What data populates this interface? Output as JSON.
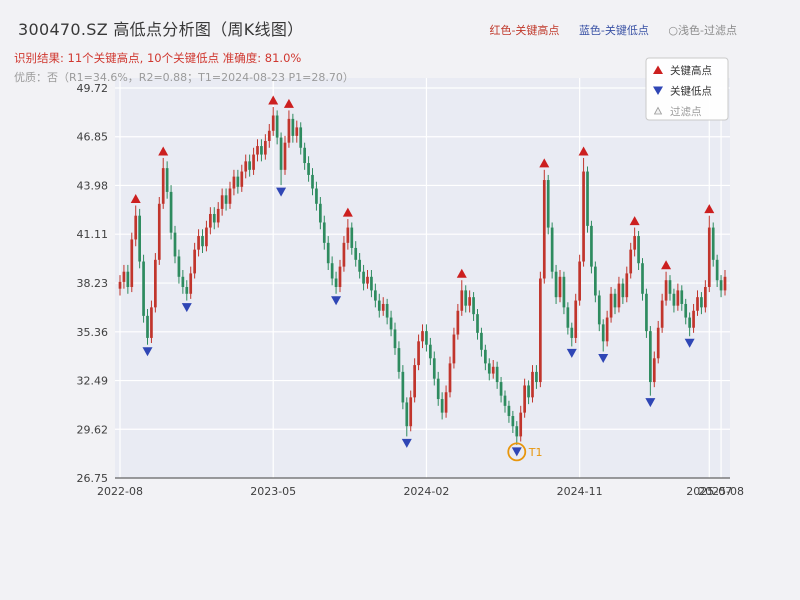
{
  "header": {
    "title": "300470.SZ 高低点分析图（周K线图）",
    "legend_inline": [
      {
        "label": "红色-关键高点",
        "color": "#c0392b"
      },
      {
        "label": "蓝色-关键低点",
        "color": "#3a52a5"
      },
      {
        "label": "○浅色-过滤点",
        "color": "#8a8a8a"
      }
    ],
    "result_line": "识别结果: 11个关键高点, 10个关键低点  准确度: 81.0%",
    "quality_line": "优质：否（R1=34.6%，R2=0.88；T1=2024-08-23 P1=28.70）"
  },
  "chart_data": {
    "type": "candlestick",
    "symbol": "300470.SZ",
    "period": "weekly",
    "title": "300470.SZ 高低点分析图（周K线图）",
    "ylim": [
      26.75,
      49.72
    ],
    "y_ticks": [
      49.72,
      46.85,
      43.98,
      41.11,
      38.23,
      35.36,
      32.49,
      29.62,
      26.75
    ],
    "x_ticks": [
      {
        "label": "2022-08",
        "week": 0
      },
      {
        "label": "2023-05",
        "week": 39
      },
      {
        "label": "2024-02",
        "week": 78
      },
      {
        "label": "2024-11",
        "week": 117
      },
      {
        "label": "2025-07",
        "week": 150
      },
      {
        "label": "2025-08",
        "week": 153
      }
    ],
    "grid": true,
    "legend_position": "upper-right-inside",
    "legend": [
      {
        "label": "关键高点",
        "marker": "up-triangle",
        "color": "#cc1f1f"
      },
      {
        "label": "关键低点",
        "marker": "down-triangle",
        "color": "#2f46b5"
      },
      {
        "label": "过滤点",
        "marker": "hollow-triangle",
        "color": "#999999"
      }
    ],
    "colors": {
      "up": "#c1352c",
      "down": "#2e8b5f",
      "key_high": "#cc1f1f",
      "key_low": "#2f46b5",
      "filtered": "#aaaaaa",
      "t1": "#e8960c",
      "grid": "#ffffff",
      "plot_bg": "#e9ebf3",
      "figure_bg": "#f2f2f5",
      "axis_text": "#3f3f3f"
    },
    "candles": [
      [
        37.9,
        38.3,
        37.5,
        38.7
      ],
      [
        38.3,
        38.9,
        37.9,
        39.3
      ],
      [
        38.9,
        38.0,
        37.6,
        39.3
      ],
      [
        38.0,
        40.8,
        37.7,
        41.2
      ],
      [
        40.8,
        42.2,
        40.4,
        42.8
      ],
      [
        42.2,
        39.5,
        39.1,
        42.6
      ],
      [
        39.5,
        36.3,
        35.9,
        39.9
      ],
      [
        36.3,
        35.0,
        34.6,
        36.7
      ],
      [
        35.0,
        36.8,
        34.7,
        37.2
      ],
      [
        36.8,
        39.6,
        36.5,
        40.0
      ],
      [
        39.6,
        42.9,
        39.3,
        43.3
      ],
      [
        42.9,
        45.0,
        42.6,
        45.6
      ],
      [
        45.0,
        43.6,
        43.2,
        45.4
      ],
      [
        43.6,
        41.2,
        40.8,
        44.0
      ],
      [
        41.2,
        39.8,
        39.4,
        41.6
      ],
      [
        39.8,
        38.6,
        38.2,
        40.2
      ],
      [
        38.6,
        38.0,
        37.6,
        39.0
      ],
      [
        38.0,
        37.6,
        37.2,
        38.4
      ],
      [
        37.6,
        38.8,
        37.3,
        39.2
      ],
      [
        38.8,
        40.2,
        38.5,
        40.6
      ],
      [
        40.2,
        41.0,
        39.8,
        41.4
      ],
      [
        41.0,
        40.4,
        40.0,
        41.4
      ],
      [
        40.4,
        41.5,
        40.1,
        41.9
      ],
      [
        41.5,
        42.3,
        41.1,
        42.7
      ],
      [
        42.3,
        41.8,
        41.4,
        42.7
      ],
      [
        41.8,
        42.6,
        41.5,
        43.0
      ],
      [
        42.6,
        43.4,
        42.2,
        43.8
      ],
      [
        43.4,
        42.9,
        42.5,
        43.8
      ],
      [
        42.9,
        43.8,
        42.6,
        44.2
      ],
      [
        43.8,
        44.5,
        43.4,
        44.9
      ],
      [
        44.5,
        43.9,
        43.5,
        44.9
      ],
      [
        43.9,
        44.8,
        43.6,
        45.2
      ],
      [
        44.8,
        45.4,
        44.4,
        45.8
      ],
      [
        45.4,
        44.9,
        44.5,
        45.8
      ],
      [
        44.9,
        45.8,
        44.6,
        46.2
      ],
      [
        45.8,
        46.3,
        45.4,
        46.7
      ],
      [
        46.3,
        45.8,
        45.4,
        46.7
      ],
      [
        45.8,
        46.6,
        45.5,
        47.0
      ],
      [
        46.6,
        47.2,
        46.2,
        47.6
      ],
      [
        47.2,
        48.1,
        46.9,
        48.6
      ],
      [
        48.1,
        46.8,
        46.4,
        48.4
      ],
      [
        46.8,
        44.9,
        44.0,
        47.1
      ],
      [
        44.9,
        46.5,
        44.6,
        46.9
      ],
      [
        46.5,
        47.9,
        46.2,
        48.4
      ],
      [
        47.9,
        46.9,
        46.5,
        48.2
      ],
      [
        46.9,
        47.4,
        46.5,
        47.8
      ],
      [
        47.4,
        46.2,
        45.8,
        47.7
      ],
      [
        46.2,
        45.3,
        44.9,
        46.5
      ],
      [
        45.3,
        44.6,
        44.2,
        45.7
      ],
      [
        44.6,
        43.8,
        43.4,
        45.0
      ],
      [
        43.8,
        42.9,
        42.5,
        44.2
      ],
      [
        42.9,
        41.8,
        41.4,
        43.3
      ],
      [
        41.8,
        40.6,
        40.2,
        42.2
      ],
      [
        40.6,
        39.4,
        39.0,
        41.0
      ],
      [
        39.4,
        38.5,
        38.1,
        39.8
      ],
      [
        38.5,
        38.0,
        37.6,
        38.9
      ],
      [
        38.0,
        39.2,
        37.7,
        39.6
      ],
      [
        39.2,
        40.6,
        38.9,
        41.0
      ],
      [
        40.6,
        41.5,
        40.2,
        42.0
      ],
      [
        41.5,
        40.3,
        39.9,
        41.8
      ],
      [
        40.3,
        39.6,
        39.2,
        40.7
      ],
      [
        39.6,
        38.9,
        38.5,
        40.0
      ],
      [
        38.9,
        38.2,
        37.8,
        39.3
      ],
      [
        38.2,
        38.6,
        37.9,
        39.0
      ],
      [
        38.6,
        37.8,
        37.4,
        39.0
      ],
      [
        37.8,
        37.2,
        36.8,
        38.2
      ],
      [
        37.2,
        36.6,
        36.2,
        37.6
      ],
      [
        36.6,
        37.0,
        36.3,
        37.4
      ],
      [
        37.0,
        36.2,
        35.8,
        37.3
      ],
      [
        36.2,
        35.5,
        35.1,
        36.6
      ],
      [
        35.5,
        34.4,
        34.0,
        35.9
      ],
      [
        34.4,
        33.0,
        32.6,
        34.8
      ],
      [
        33.0,
        31.2,
        30.8,
        33.4
      ],
      [
        31.2,
        29.8,
        29.2,
        31.5
      ],
      [
        29.8,
        31.5,
        29.5,
        31.9
      ],
      [
        31.5,
        33.4,
        31.2,
        33.8
      ],
      [
        33.4,
        34.8,
        33.1,
        35.2
      ],
      [
        34.8,
        35.4,
        34.4,
        35.8
      ],
      [
        35.4,
        34.6,
        34.2,
        35.8
      ],
      [
        34.6,
        33.8,
        33.4,
        35.0
      ],
      [
        33.8,
        32.6,
        32.2,
        34.2
      ],
      [
        32.6,
        31.4,
        31.0,
        33.0
      ],
      [
        31.4,
        30.6,
        30.2,
        31.8
      ],
      [
        30.6,
        31.8,
        30.3,
        32.2
      ],
      [
        31.8,
        33.5,
        31.5,
        33.9
      ],
      [
        33.5,
        35.2,
        33.2,
        35.6
      ],
      [
        35.2,
        36.6,
        34.9,
        37.0
      ],
      [
        36.6,
        37.8,
        36.3,
        38.4
      ],
      [
        37.8,
        36.9,
        36.5,
        38.1
      ],
      [
        36.9,
        37.4,
        36.5,
        37.8
      ],
      [
        37.4,
        36.4,
        36.0,
        37.7
      ],
      [
        36.4,
        35.3,
        34.9,
        36.7
      ],
      [
        35.3,
        34.3,
        33.9,
        35.6
      ],
      [
        34.3,
        33.5,
        33.1,
        34.6
      ],
      [
        33.5,
        32.9,
        32.5,
        33.8
      ],
      [
        32.9,
        33.3,
        32.6,
        33.7
      ],
      [
        33.3,
        32.4,
        32.0,
        33.6
      ],
      [
        32.4,
        31.6,
        31.2,
        32.7
      ],
      [
        31.6,
        31.0,
        30.6,
        31.9
      ],
      [
        31.0,
        30.4,
        30.0,
        31.3
      ],
      [
        30.4,
        29.8,
        29.4,
        30.7
      ],
      [
        29.8,
        29.2,
        28.7,
        30.1
      ],
      [
        29.2,
        30.6,
        28.9,
        31.0
      ],
      [
        30.6,
        32.2,
        30.3,
        32.6
      ],
      [
        32.2,
        31.5,
        31.1,
        32.5
      ],
      [
        31.5,
        33.0,
        31.2,
        33.4
      ],
      [
        33.0,
        32.4,
        32.0,
        33.4
      ],
      [
        32.4,
        38.5,
        32.1,
        38.9
      ],
      [
        38.5,
        44.3,
        38.2,
        44.9
      ],
      [
        44.3,
        41.5,
        41.1,
        44.6
      ],
      [
        41.5,
        38.9,
        38.5,
        41.8
      ],
      [
        38.9,
        37.4,
        37.0,
        39.3
      ],
      [
        37.4,
        38.6,
        37.1,
        39.0
      ],
      [
        38.6,
        36.8,
        36.4,
        38.9
      ],
      [
        36.8,
        35.6,
        35.2,
        37.1
      ],
      [
        35.6,
        35.0,
        34.5,
        35.9
      ],
      [
        35.0,
        37.2,
        34.7,
        37.6
      ],
      [
        37.2,
        39.5,
        36.9,
        39.9
      ],
      [
        39.5,
        44.8,
        39.2,
        45.6
      ],
      [
        44.8,
        41.6,
        41.2,
        45.1
      ],
      [
        41.6,
        39.2,
        38.8,
        41.9
      ],
      [
        39.2,
        37.5,
        37.1,
        39.5
      ],
      [
        37.5,
        35.8,
        35.4,
        37.8
      ],
      [
        35.8,
        34.8,
        34.2,
        36.1
      ],
      [
        34.8,
        36.2,
        34.5,
        36.6
      ],
      [
        36.2,
        37.6,
        35.9,
        38.0
      ],
      [
        37.6,
        36.8,
        36.4,
        37.9
      ],
      [
        36.8,
        38.2,
        36.5,
        38.6
      ],
      [
        38.2,
        37.4,
        37.0,
        38.5
      ],
      [
        37.4,
        38.8,
        37.1,
        39.2
      ],
      [
        38.8,
        40.2,
        38.5,
        40.6
      ],
      [
        40.2,
        41.0,
        39.8,
        41.5
      ],
      [
        41.0,
        39.4,
        39.0,
        41.3
      ],
      [
        39.4,
        37.6,
        37.2,
        39.7
      ],
      [
        37.6,
        35.4,
        35.0,
        37.9
      ],
      [
        35.4,
        32.4,
        31.6,
        35.7
      ],
      [
        32.4,
        33.8,
        32.1,
        34.2
      ],
      [
        33.8,
        35.6,
        33.5,
        36.0
      ],
      [
        35.6,
        37.2,
        35.3,
        37.6
      ],
      [
        37.2,
        38.4,
        36.9,
        38.9
      ],
      [
        38.4,
        37.6,
        37.2,
        38.7
      ],
      [
        37.6,
        36.9,
        36.5,
        37.9
      ],
      [
        36.9,
        37.8,
        36.6,
        38.2
      ],
      [
        37.8,
        37.0,
        36.6,
        38.1
      ],
      [
        37.0,
        36.2,
        35.8,
        37.3
      ],
      [
        36.2,
        35.6,
        35.1,
        36.5
      ],
      [
        35.6,
        36.6,
        35.3,
        37.0
      ],
      [
        36.6,
        37.4,
        36.3,
        37.8
      ],
      [
        37.4,
        36.8,
        36.4,
        37.7
      ],
      [
        36.8,
        38.0,
        36.5,
        38.4
      ],
      [
        38.0,
        41.5,
        37.7,
        42.2
      ],
      [
        41.5,
        39.6,
        39.2,
        41.8
      ],
      [
        39.6,
        38.4,
        38.0,
        39.9
      ],
      [
        38.4,
        37.8,
        37.4,
        38.7
      ],
      [
        37.8,
        38.6,
        37.5,
        39.0
      ]
    ],
    "key_highs": [
      [
        4,
        42.8
      ],
      [
        11,
        45.6
      ],
      [
        39,
        48.6
      ],
      [
        43,
        48.4
      ],
      [
        58,
        42.0
      ],
      [
        87,
        38.4
      ],
      [
        108,
        44.9
      ],
      [
        118,
        45.6
      ],
      [
        131,
        41.5
      ],
      [
        139,
        38.9
      ],
      [
        150,
        42.2
      ]
    ],
    "key_lows": [
      [
        7,
        34.6
      ],
      [
        17,
        37.2
      ],
      [
        41,
        44.0
      ],
      [
        55,
        37.6
      ],
      [
        73,
        29.2
      ],
      [
        101,
        28.7
      ],
      [
        115,
        34.5
      ],
      [
        123,
        34.2
      ],
      [
        135,
        31.6
      ],
      [
        145,
        35.1
      ]
    ],
    "t1_annotation": {
      "week": 101,
      "value": 28.7,
      "label": "T1"
    }
  }
}
